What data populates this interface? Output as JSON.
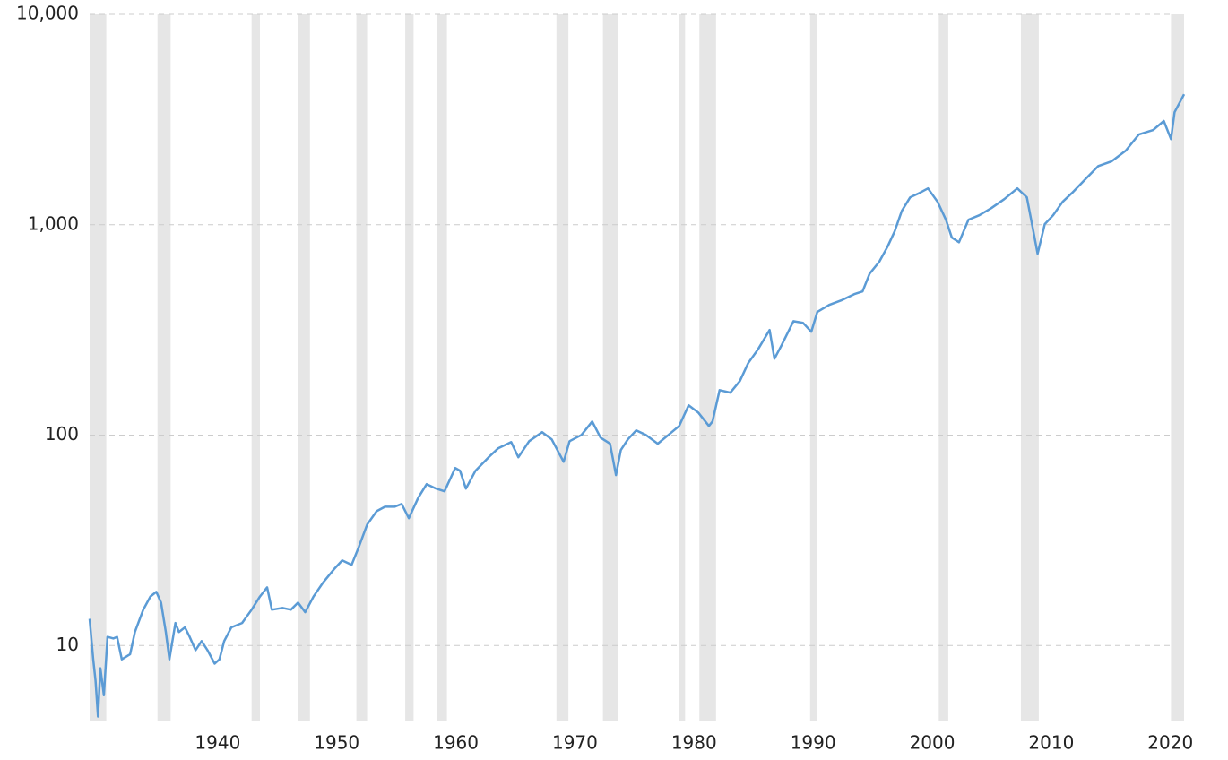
{
  "chart_data": {
    "type": "line",
    "log_y": true,
    "grid": true,
    "color": "#5b9bd5",
    "x": [
      1929.7,
      1930.0,
      1930.2,
      1930.4,
      1930.6,
      1930.9,
      1931.2,
      1931.7,
      1932.0,
      1932.4,
      1933.1,
      1933.5,
      1934.2,
      1934.8,
      1935.3,
      1935.7,
      1936.1,
      1936.4,
      1936.9,
      1937.2,
      1937.7,
      1938.1,
      1938.6,
      1939.1,
      1939.6,
      1940.2,
      1940.6,
      1941.0,
      1941.6,
      1942.5,
      1943.3,
      1944.0,
      1944.6,
      1945.0,
      1945.9,
      1946.6,
      1947.2,
      1947.8,
      1948.5,
      1949.3,
      1950.2,
      1950.9,
      1951.7,
      1952.3,
      1953.0,
      1953.8,
      1954.5,
      1955.3,
      1955.9,
      1956.5,
      1957.3,
      1958.0,
      1958.8,
      1959.5,
      1960.4,
      1960.8,
      1961.3,
      1962.1,
      1963.2,
      1964.0,
      1965.1,
      1965.7,
      1966.6,
      1967.7,
      1968.5,
      1969.5,
      1970.0,
      1971.0,
      1971.9,
      1972.6,
      1973.4,
      1973.9,
      1974.3,
      1974.9,
      1975.6,
      1976.4,
      1977.4,
      1978.3,
      1979.2,
      1980.0,
      1980.8,
      1981.7,
      1982.0,
      1982.6,
      1983.5,
      1984.3,
      1985.0,
      1985.8,
      1986.8,
      1987.2,
      1987.8,
      1988.8,
      1989.6,
      1990.3,
      1990.8,
      1991.8,
      1992.8,
      1993.9,
      1994.6,
      1995.2,
      1996.0,
      1996.7,
      1997.3,
      1997.9,
      1998.6,
      1999.4,
      2000.1,
      2000.9,
      2001.6,
      2002.1,
      2002.7,
      2003.5,
      2004.4,
      2005.4,
      2006.5,
      2007.6,
      2008.4,
      2008.9,
      2009.3,
      2009.9,
      2010.6,
      2011.4,
      2012.2,
      2013.3,
      2014.4,
      2015.5,
      2016.7,
      2017.8,
      2019.0,
      2019.9,
      2020.5,
      2020.8,
      2021.6
    ],
    "values": [
      13.4,
      8.6,
      6.8,
      4.6,
      7.8,
      5.8,
      11.0,
      10.8,
      11.0,
      8.6,
      9.1,
      11.6,
      14.8,
      17.1,
      18.0,
      16.0,
      11.6,
      8.6,
      12.8,
      11.6,
      12.2,
      11.0,
      9.5,
      10.5,
      9.5,
      8.2,
      8.6,
      10.5,
      12.2,
      12.8,
      14.8,
      17.1,
      18.9,
      14.8,
      15.1,
      14.8,
      16.0,
      14.4,
      17.1,
      19.9,
      23.0,
      25.4,
      24.2,
      29.4,
      37.6,
      43.5,
      45.7,
      45.7,
      47.1,
      40.3,
      50.5,
      58.5,
      55.7,
      54.1,
      69.8,
      67.8,
      55.7,
      67.8,
      78.5,
      86.5,
      92.7,
      78.5,
      93.6,
      103.3,
      95.5,
      74.7,
      93.6,
      100.2,
      116.1,
      97.3,
      91.0,
      64.6,
      84.9,
      95.5,
      105.4,
      100.2,
      91.0,
      100.2,
      110.6,
      138.7,
      128.2,
      110.6,
      116.1,
      163.7,
      159.2,
      180.7,
      219.8,
      254.6,
      316,
      230.7,
      267.3,
      348,
      342,
      310,
      385,
      416,
      437,
      468,
      482,
      586,
      667,
      787,
      930,
      1164,
      1349,
      1418,
      1489,
      1285,
      1057,
      869,
      826,
      1057,
      1109,
      1199,
      1324,
      1489,
      1349,
      958,
      728,
      1007,
      1109,
      1285,
      1418,
      1644,
      1901,
      2000,
      2249,
      2685,
      2818,
      3111,
      2553,
      3428,
      4169
    ],
    "recessions": [
      [
        1929.7,
        1931.1
      ],
      [
        1935.4,
        1936.5
      ],
      [
        1943.3,
        1944.0
      ],
      [
        1947.2,
        1948.2
      ],
      [
        1952.1,
        1953.0
      ],
      [
        1956.2,
        1956.9
      ],
      [
        1958.9,
        1959.7
      ],
      [
        1968.9,
        1969.9
      ],
      [
        1972.8,
        1974.1
      ],
      [
        1979.2,
        1979.7
      ],
      [
        1980.9,
        1982.3
      ],
      [
        1990.2,
        1990.8
      ],
      [
        2001.0,
        2001.8
      ],
      [
        2007.9,
        2009.4
      ],
      [
        2020.5,
        2021.6
      ]
    ],
    "recession_color": "#e6e6e6",
    "xlim": [
      1929.7,
      2021.6
    ],
    "xticks": [
      1940,
      1950,
      1960,
      1970,
      1980,
      1990,
      2000,
      2010,
      2020
    ],
    "ylim": [
      4.4,
      10000
    ],
    "yticks": [
      10,
      100,
      {
        "value": 1000,
        "label": "1,000"
      },
      {
        "value": 10000,
        "label": "10,000"
      }
    ]
  }
}
